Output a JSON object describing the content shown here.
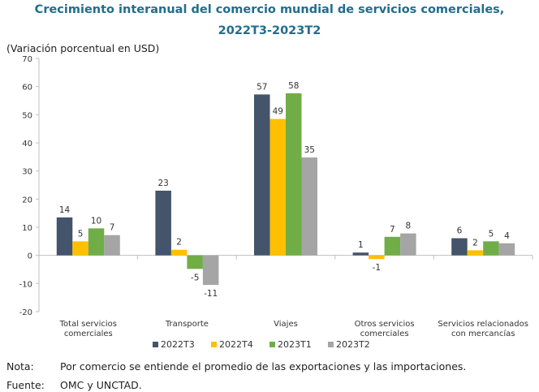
{
  "chart_data": {
    "type": "bar",
    "title": "Crecimiento interanual del comercio mundial de servicios comerciales,",
    "subtitle": "2022T3-2023T2",
    "ylabel": "(Variación porcentual en USD)",
    "xlabel": "",
    "ylim": [
      -20,
      70
    ],
    "yticks": [
      -20,
      -10,
      0,
      10,
      20,
      30,
      40,
      50,
      60,
      70
    ],
    "grid": false,
    "legend_position": "bottom",
    "categories": [
      [
        "Total servicios",
        "comerciales"
      ],
      [
        "Transporte"
      ],
      [
        "Viajes"
      ],
      [
        "Otros servicios",
        "comerciales"
      ],
      [
        "Servicios relacionados",
        "con mercancías"
      ]
    ],
    "series": [
      {
        "name": "2022T3",
        "color": "#44546a",
        "values": [
          13.5,
          23,
          57.2,
          1,
          6.1
        ],
        "labels": [
          "14",
          "23",
          "57",
          "1",
          "6"
        ]
      },
      {
        "name": "2022T4",
        "color": "#ffc000",
        "values": [
          5,
          2,
          48.5,
          -1.3,
          1.8
        ],
        "labels": [
          "5",
          "2",
          "49",
          "-1",
          "2"
        ]
      },
      {
        "name": "2023T1",
        "color": "#70ad47",
        "values": [
          9.6,
          -4.8,
          57.6,
          6.6,
          5
        ],
        "labels": [
          "10",
          "-5",
          "58",
          "7",
          "5"
        ]
      },
      {
        "name": "2023T2",
        "color": "#a5a5a5",
        "values": [
          7.2,
          -10.5,
          34.8,
          7.8,
          4.3
        ],
        "labels": [
          "7",
          "-11",
          "35",
          "8",
          "4"
        ]
      }
    ]
  },
  "notes": {
    "note_label": "Nota:",
    "note_text": "Por comercio se entiende el promedio de las exportaciones y las importaciones.",
    "source_label": "Fuente:",
    "source_text": "OMC y UNCTAD."
  }
}
